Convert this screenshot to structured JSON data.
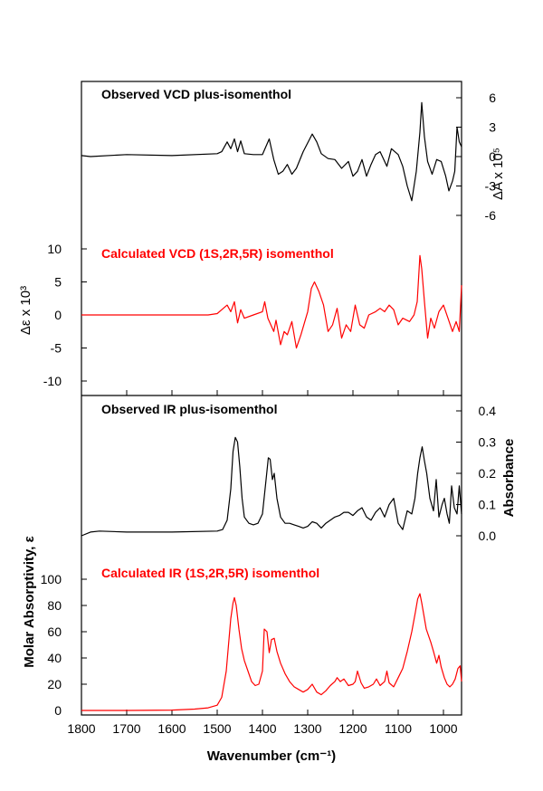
{
  "chart_data": {
    "type": "line",
    "xlabel": "Wavenumber (cm⁻¹)",
    "x_tick_labels": [
      "1800",
      "1700",
      "1600",
      "1500",
      "1400",
      "1300",
      "1200",
      "1100",
      "1000"
    ],
    "xlim": [
      1800,
      960
    ],
    "axis_labels": {
      "vcd_right": "ΔA x 10⁵",
      "vcd_left": "Δε x 10³",
      "ir_right": "Absorbance",
      "ir_left": "Molar Absorptivity, ε"
    },
    "ticks": {
      "vcd_right": [
        "6",
        "3",
        "0",
        "-3",
        "-6"
      ],
      "vcd_left": [
        "10",
        "5",
        "0",
        "-5",
        "-10"
      ],
      "ir_right": [
        "0.4",
        "0.3",
        "0.2",
        "0.1",
        "0.0"
      ],
      "ir_left": [
        "100",
        "80",
        "60",
        "40",
        "20",
        "0"
      ]
    },
    "colors": {
      "observed": "#000000",
      "calculated": "#ff0000"
    },
    "panels": [
      {
        "title": "Observed VCD plus-isomenthol",
        "axis": "right",
        "ylim": [
          -6,
          6
        ],
        "color": "observed",
        "x": [
          1800,
          1780,
          1700,
          1600,
          1500,
          1490,
          1478,
          1470,
          1462,
          1455,
          1448,
          1440,
          1420,
          1400,
          1385,
          1375,
          1365,
          1355,
          1345,
          1335,
          1325,
          1310,
          1290,
          1280,
          1270,
          1255,
          1240,
          1225,
          1210,
          1200,
          1190,
          1180,
          1170,
          1160,
          1150,
          1140,
          1125,
          1115,
          1100,
          1090,
          1080,
          1070,
          1060,
          1052,
          1048,
          1042,
          1035,
          1025,
          1015,
          1005,
          995,
          988,
          980,
          975,
          970,
          965,
          960
        ],
        "y": [
          0.1,
          0.0,
          0.2,
          0.1,
          0.3,
          0.5,
          1.5,
          0.8,
          1.8,
          0.5,
          1.6,
          0.3,
          0.2,
          0.2,
          1.8,
          -0.3,
          -1.8,
          -1.5,
          -0.8,
          -1.8,
          -1.2,
          0.5,
          2.3,
          1.5,
          0.3,
          -0.2,
          -0.3,
          -1.2,
          -0.5,
          -2.0,
          -1.5,
          -0.3,
          -2.0,
          -0.8,
          0.2,
          0.5,
          -1.0,
          0.8,
          0.2,
          -1.0,
          -3.0,
          -4.5,
          -1.5,
          2.5,
          5.5,
          2.0,
          -0.5,
          -1.8,
          -0.3,
          -0.5,
          -2.0,
          -3.5,
          -2.5,
          -1.5,
          3.0,
          1.5,
          1.0
        ]
      },
      {
        "title": "Calculated VCD (1S,2R,5R) isomenthol",
        "axis": "left",
        "ylim": [
          -10,
          10
        ],
        "color": "calculated",
        "x": [
          1800,
          1700,
          1600,
          1520,
          1500,
          1490,
          1478,
          1470,
          1462,
          1455,
          1448,
          1440,
          1420,
          1400,
          1395,
          1388,
          1375,
          1370,
          1360,
          1352,
          1345,
          1335,
          1325,
          1315,
          1300,
          1292,
          1285,
          1275,
          1265,
          1255,
          1245,
          1235,
          1225,
          1215,
          1205,
          1195,
          1185,
          1175,
          1165,
          1150,
          1140,
          1130,
          1120,
          1110,
          1100,
          1090,
          1075,
          1065,
          1058,
          1052,
          1048,
          1042,
          1035,
          1028,
          1020,
          1010,
          1000,
          990,
          980,
          972,
          965,
          960
        ],
        "y": [
          0.0,
          0.0,
          0.0,
          0.0,
          0.2,
          0.8,
          1.5,
          0.5,
          2.0,
          -1.2,
          0.8,
          -0.5,
          0.0,
          0.5,
          2.0,
          -0.5,
          -2.5,
          -0.8,
          -4.5,
          -2.5,
          -3.0,
          -1.0,
          -5.0,
          -3.0,
          0.5,
          4.0,
          5.0,
          3.5,
          1.5,
          -2.5,
          -1.5,
          1.0,
          -3.5,
          -1.5,
          -2.5,
          1.5,
          -1.5,
          -2.0,
          0.0,
          0.5,
          1.0,
          0.5,
          1.5,
          0.8,
          -1.5,
          -0.5,
          -1.0,
          0.0,
          2.0,
          9.0,
          7.0,
          2.0,
          -3.5,
          -0.5,
          -2.0,
          0.5,
          1.5,
          -0.5,
          -2.5,
          -1.0,
          -2.5,
          4.5
        ]
      },
      {
        "title": "Observed IR plus-isomenthol",
        "axis": "right",
        "ylim": [
          0,
          0.4
        ],
        "color": "observed",
        "x": [
          1800,
          1780,
          1760,
          1700,
          1600,
          1500,
          1488,
          1478,
          1470,
          1465,
          1460,
          1455,
          1450,
          1445,
          1440,
          1430,
          1420,
          1410,
          1400,
          1392,
          1387,
          1383,
          1378,
          1374,
          1368,
          1360,
          1350,
          1340,
          1330,
          1320,
          1310,
          1300,
          1290,
          1280,
          1270,
          1260,
          1250,
          1240,
          1230,
          1220,
          1210,
          1200,
          1190,
          1180,
          1170,
          1160,
          1150,
          1140,
          1130,
          1120,
          1110,
          1100,
          1090,
          1080,
          1070,
          1063,
          1057,
          1052,
          1047,
          1042,
          1037,
          1030,
          1022,
          1016,
          1010,
          1003,
          998,
          992,
          987,
          982,
          976,
          970,
          965,
          960
        ],
        "y": [
          0.0,
          0.012,
          0.015,
          0.012,
          0.012,
          0.015,
          0.02,
          0.05,
          0.15,
          0.27,
          0.315,
          0.3,
          0.22,
          0.12,
          0.06,
          0.04,
          0.035,
          0.04,
          0.07,
          0.18,
          0.25,
          0.245,
          0.18,
          0.2,
          0.12,
          0.06,
          0.04,
          0.04,
          0.035,
          0.03,
          0.025,
          0.03,
          0.045,
          0.04,
          0.025,
          0.04,
          0.05,
          0.06,
          0.065,
          0.075,
          0.075,
          0.065,
          0.08,
          0.09,
          0.06,
          0.05,
          0.075,
          0.09,
          0.06,
          0.1,
          0.12,
          0.04,
          0.02,
          0.08,
          0.07,
          0.12,
          0.2,
          0.25,
          0.285,
          0.24,
          0.2,
          0.12,
          0.08,
          0.18,
          0.06,
          0.1,
          0.12,
          0.07,
          0.04,
          0.16,
          0.09,
          0.07,
          0.16,
          0.07
        ]
      },
      {
        "title": "Calculated IR (1S,2R,5R) isomenthol",
        "axis": "left",
        "ylim": [
          0,
          100
        ],
        "color": "calculated",
        "x": [
          1800,
          1700,
          1600,
          1550,
          1520,
          1500,
          1490,
          1480,
          1475,
          1470,
          1465,
          1462,
          1458,
          1452,
          1446,
          1440,
          1432,
          1424,
          1416,
          1408,
          1400,
          1396,
          1390,
          1385,
          1380,
          1374,
          1368,
          1360,
          1350,
          1340,
          1330,
          1320,
          1310,
          1300,
          1290,
          1280,
          1270,
          1260,
          1250,
          1240,
          1235,
          1228,
          1220,
          1210,
          1200,
          1195,
          1190,
          1182,
          1175,
          1165,
          1155,
          1148,
          1140,
          1130,
          1125,
          1120,
          1110,
          1100,
          1090,
          1080,
          1070,
          1062,
          1057,
          1052,
          1048,
          1042,
          1038,
          1032,
          1028,
          1022,
          1015,
          1010,
          1005,
          998,
          992,
          986,
          980,
          974,
          968,
          963,
          960
        ],
        "y": [
          0,
          0,
          0.3,
          1,
          2,
          4,
          10,
          30,
          50,
          70,
          82,
          86,
          80,
          62,
          47,
          38,
          30,
          22,
          19,
          20,
          30,
          62,
          60,
          44,
          54,
          55,
          45,
          36,
          28,
          22,
          18,
          16,
          14,
          16,
          20,
          14,
          12,
          15,
          19,
          22,
          25,
          22,
          24,
          19,
          20,
          22,
          30,
          21,
          17,
          18,
          20,
          24,
          19,
          22,
          30,
          21,
          18,
          25,
          32,
          45,
          60,
          75,
          85,
          89,
          82,
          70,
          62,
          56,
          52,
          45,
          36,
          42,
          33,
          25,
          20,
          18,
          20,
          24,
          32,
          34,
          22
        ]
      }
    ]
  }
}
